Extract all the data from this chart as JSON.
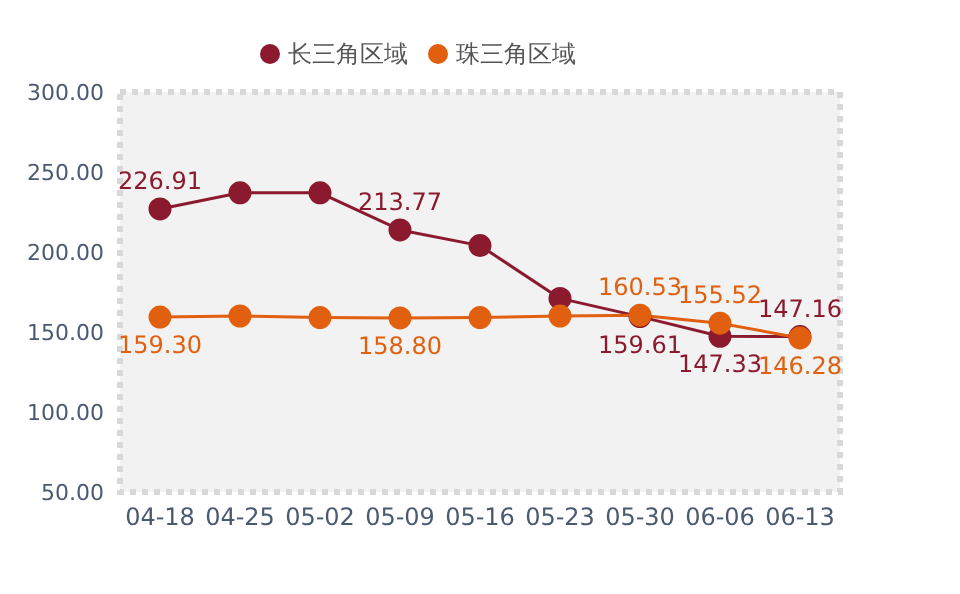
{
  "chart_data": {
    "type": "line",
    "categories": [
      "04-18",
      "04-25",
      "05-02",
      "05-09",
      "05-16",
      "05-23",
      "05-30",
      "06-06",
      "06-13"
    ],
    "series": [
      {
        "name": "长三角区域",
        "color": "#8b1a2e",
        "values": [
          226.91,
          237,
          237,
          213.77,
          204,
          171,
          159.61,
          147.33,
          147.16
        ],
        "value_labels": [
          "226.91",
          null,
          null,
          "213.77",
          null,
          null,
          "159.61",
          "147.33",
          "147.16"
        ]
      },
      {
        "name": "珠三角区域",
        "color": "#e0600f",
        "values": [
          159.3,
          160,
          159,
          158.8,
          159,
          160,
          160.53,
          155.52,
          146.28
        ],
        "value_labels": [
          "159.30",
          null,
          null,
          "158.80",
          null,
          null,
          "160.53",
          "155.52",
          "146.28"
        ]
      }
    ],
    "ylim": [
      50,
      300
    ],
    "yticks": [
      {
        "value": 50,
        "label": "50.00"
      },
      {
        "value": 100,
        "label": "100.00"
      },
      {
        "value": 150,
        "label": "150.00"
      },
      {
        "value": 200,
        "label": "200.00"
      },
      {
        "value": 250,
        "label": "250.00"
      },
      {
        "value": 300,
        "label": "300.00"
      }
    ],
    "grid": false,
    "legend": "top",
    "marker": "circle",
    "line_style": "solid"
  }
}
